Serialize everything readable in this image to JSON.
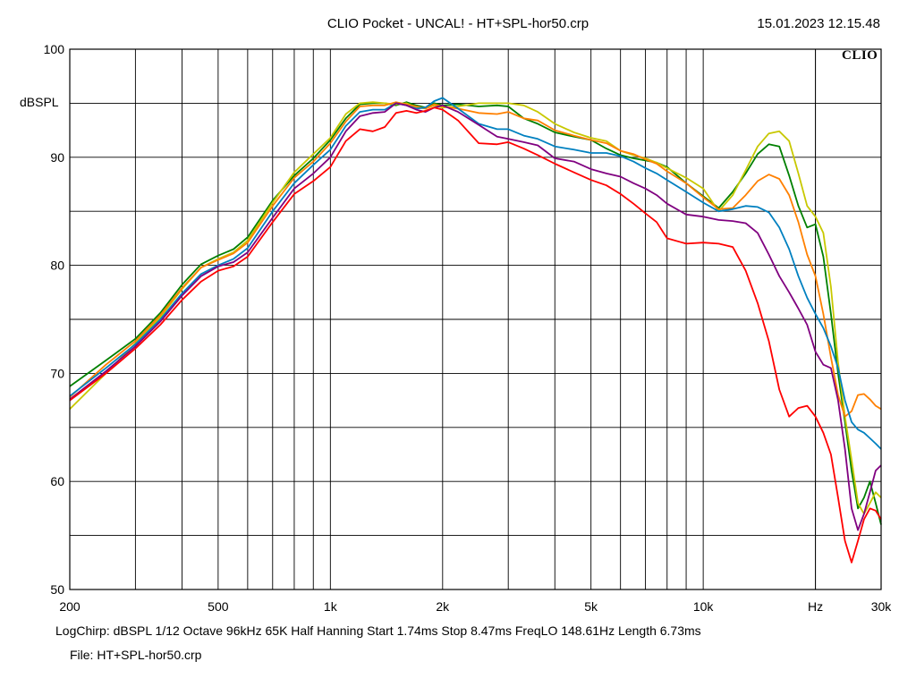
{
  "header": {
    "title": "CLIO Pocket - UNCAL! - HT+SPL-hor50.crp",
    "timestamp": "15.01.2023 12.15.48",
    "brand": "CLIO"
  },
  "footer": {
    "info": "LogChirp:  dBSPL   1/12 Octave   96kHz   65K   Half Hanning   Start 1.74ms    Stop 8.47ms    FreqLO 148.61Hz    Length 6.73ms",
    "file": "File: HT+SPL-hor50.crp"
  },
  "chart_data": {
    "type": "line",
    "xscale": "log",
    "xlim": [
      200,
      30000
    ],
    "ylim": [
      50,
      100
    ],
    "ylabel": "dBSPL",
    "xlabel": "Hz",
    "grid": true,
    "x_ticks": [
      {
        "value": 200,
        "label": "200"
      },
      {
        "value": 500,
        "label": "500"
      },
      {
        "value": 1000,
        "label": "1k"
      },
      {
        "value": 2000,
        "label": "2k"
      },
      {
        "value": 5000,
        "label": "5k"
      },
      {
        "value": 10000,
        "label": "10k"
      },
      {
        "value": 30000,
        "label": "30k"
      }
    ],
    "y_ticks": [
      {
        "value": 100,
        "label": "100"
      },
      {
        "value": 90,
        "label": "90"
      },
      {
        "value": 80,
        "label": "80"
      },
      {
        "value": 70,
        "label": "70"
      },
      {
        "value": 60,
        "label": "60"
      },
      {
        "value": 50,
        "label": "50"
      }
    ],
    "series": [
      {
        "color": "#008000",
        "x": [
          200,
          250,
          300,
          350,
          400,
          450,
          500,
          550,
          600,
          700,
          800,
          900,
          1000,
          1100,
          1200,
          1300,
          1400,
          1500,
          1600,
          1700,
          1800,
          1900,
          2000,
          2200,
          2500,
          2800,
          3000,
          3300,
          3600,
          4000,
          4500,
          5000,
          5500,
          6000,
          6500,
          7000,
          7500,
          8000,
          9000,
          10000,
          11000,
          12000,
          13000,
          14000,
          15000,
          16000,
          17000,
          18000,
          19000,
          20000,
          21000,
          22000,
          23000,
          24000,
          25000,
          26000,
          27000,
          28000,
          29000,
          30000
        ],
        "y": [
          68.8,
          71.2,
          73.2,
          75.6,
          78.2,
          80.1,
          80.9,
          81.5,
          82.6,
          86.0,
          88.3,
          89.9,
          91.6,
          93.6,
          94.9,
          95.0,
          95.0,
          94.8,
          95.1,
          94.8,
          94.6,
          95.0,
          94.8,
          94.9,
          94.7,
          94.8,
          94.7,
          93.6,
          93.1,
          92.3,
          91.9,
          91.6,
          90.8,
          90.2,
          89.9,
          89.7,
          89.5,
          89.1,
          87.6,
          86.4,
          85.3,
          86.8,
          88.5,
          90.3,
          91.2,
          91.0,
          88.3,
          85.5,
          83.5,
          83.8,
          80.8,
          75.5,
          70.0,
          65.5,
          61.0,
          57.5,
          58.5,
          60.0,
          58.0,
          56.0
        ]
      },
      {
        "color": "#c8c800",
        "x": [
          200,
          250,
          300,
          350,
          400,
          450,
          500,
          550,
          600,
          700,
          800,
          900,
          1000,
          1100,
          1200,
          1300,
          1400,
          1500,
          1600,
          1700,
          1800,
          1900,
          2000,
          2200,
          2500,
          2800,
          3000,
          3300,
          3600,
          4000,
          4500,
          5000,
          5500,
          6000,
          6500,
          7000,
          7500,
          8000,
          9000,
          10000,
          11000,
          12000,
          13000,
          14000,
          15000,
          16000,
          17000,
          18000,
          19000,
          20000,
          21000,
          22000,
          23000,
          24000,
          25000,
          26000,
          27000,
          28000,
          29000,
          30000
        ],
        "y": [
          66.7,
          70.0,
          72.8,
          75.2,
          77.8,
          79.8,
          80.6,
          81.2,
          82.3,
          85.8,
          88.6,
          90.3,
          91.8,
          94.0,
          95.0,
          95.1,
          95.0,
          94.9,
          95.0,
          94.6,
          94.5,
          94.8,
          94.6,
          94.7,
          95.0,
          95.0,
          95.0,
          94.8,
          94.2,
          93.1,
          92.3,
          91.8,
          91.5,
          90.6,
          90.2,
          89.9,
          89.5,
          89.0,
          88.1,
          87.1,
          85.0,
          86.5,
          88.8,
          91.0,
          92.2,
          92.4,
          91.5,
          88.5,
          85.5,
          84.5,
          83.0,
          78.0,
          71.0,
          66.0,
          62.0,
          58.0,
          57.0,
          58.0,
          59.0,
          58.5
        ]
      },
      {
        "color": "#ff8000",
        "x": [
          200,
          250,
          300,
          350,
          400,
          450,
          500,
          550,
          600,
          700,
          800,
          900,
          1000,
          1100,
          1200,
          1300,
          1400,
          1500,
          1600,
          1700,
          1800,
          1900,
          2000,
          2200,
          2500,
          2800,
          3000,
          3300,
          3600,
          4000,
          4500,
          5000,
          5500,
          6000,
          6500,
          7000,
          7500,
          8000,
          9000,
          10000,
          11000,
          12000,
          13000,
          14000,
          15000,
          16000,
          17000,
          18000,
          19000,
          20000,
          21000,
          22000,
          23000,
          24000,
          25000,
          26000,
          27000,
          28000,
          29000,
          30000
        ],
        "y": [
          67.8,
          70.8,
          73.0,
          75.4,
          77.9,
          79.8,
          80.5,
          81.1,
          82.1,
          85.5,
          88.1,
          89.6,
          91.3,
          93.3,
          94.7,
          94.8,
          94.8,
          95.1,
          94.9,
          94.7,
          94.5,
          94.9,
          94.7,
          94.5,
          94.1,
          94.0,
          94.2,
          93.6,
          93.4,
          92.5,
          92.0,
          91.6,
          91.3,
          90.6,
          90.3,
          89.8,
          89.4,
          88.7,
          87.6,
          86.3,
          85.2,
          85.3,
          86.5,
          87.8,
          88.4,
          88.0,
          86.5,
          84.0,
          81.0,
          79.0,
          75.5,
          71.5,
          68.0,
          66.0,
          66.5,
          68.0,
          68.1,
          67.6,
          67.0,
          66.7
        ]
      },
      {
        "color": "#0080c0",
        "x": [
          200,
          250,
          300,
          350,
          400,
          450,
          500,
          550,
          600,
          700,
          800,
          900,
          1000,
          1100,
          1200,
          1300,
          1400,
          1500,
          1600,
          1700,
          1800,
          1900,
          2000,
          2200,
          2500,
          2800,
          3000,
          3300,
          3600,
          4000,
          4500,
          5000,
          5500,
          6000,
          6500,
          7000,
          7500,
          8000,
          9000,
          10000,
          11000,
          12000,
          13000,
          14000,
          15000,
          16000,
          17000,
          18000,
          19000,
          20000,
          21000,
          22000,
          23000,
          24000,
          25000,
          26000,
          27000,
          28000,
          29000,
          30000
        ],
        "y": [
          67.9,
          70.5,
          72.7,
          75.0,
          77.4,
          79.2,
          80.0,
          80.6,
          81.6,
          85.0,
          87.6,
          89.3,
          90.7,
          92.9,
          94.2,
          94.4,
          94.4,
          95.0,
          94.8,
          94.5,
          94.6,
          95.2,
          95.5,
          94.5,
          93.1,
          92.6,
          92.6,
          92.0,
          91.7,
          91.0,
          90.7,
          90.4,
          90.4,
          90.1,
          89.6,
          89.0,
          88.5,
          87.9,
          86.8,
          85.8,
          85.0,
          85.2,
          85.5,
          85.4,
          84.9,
          83.5,
          81.5,
          79.0,
          77.0,
          75.5,
          74.2,
          72.5,
          70.5,
          67.5,
          65.5,
          64.8,
          64.5,
          64.0,
          63.5,
          63.0
        ]
      },
      {
        "color": "#800080",
        "x": [
          200,
          250,
          300,
          350,
          400,
          450,
          500,
          550,
          600,
          700,
          800,
          900,
          1000,
          1100,
          1200,
          1300,
          1400,
          1500,
          1600,
          1700,
          1800,
          1900,
          2000,
          2200,
          2500,
          2800,
          3000,
          3300,
          3600,
          4000,
          4500,
          5000,
          5500,
          6000,
          6500,
          7000,
          7500,
          8000,
          9000,
          10000,
          11000,
          12000,
          13000,
          14000,
          15000,
          16000,
          17000,
          18000,
          19000,
          20000,
          21000,
          22000,
          23000,
          24000,
          25000,
          26000,
          27000,
          28000,
          29000,
          30000
        ],
        "y": [
          67.6,
          70.2,
          72.5,
          74.8,
          77.2,
          79.0,
          79.9,
          80.3,
          81.2,
          84.4,
          87.1,
          88.5,
          90.0,
          92.4,
          93.8,
          94.1,
          94.2,
          95.0,
          94.8,
          94.4,
          94.2,
          94.6,
          94.8,
          94.2,
          93.0,
          91.9,
          91.7,
          91.4,
          91.1,
          89.9,
          89.6,
          88.9,
          88.5,
          88.2,
          87.6,
          87.1,
          86.5,
          85.7,
          84.7,
          84.5,
          84.2,
          84.1,
          83.9,
          83.0,
          81.0,
          79.0,
          77.5,
          76.0,
          74.5,
          72.0,
          70.8,
          70.5,
          67.5,
          63.0,
          57.5,
          55.5,
          57.0,
          59.0,
          61.0,
          61.5
        ]
      },
      {
        "color": "#ff0000",
        "x": [
          200,
          250,
          300,
          350,
          400,
          450,
          500,
          550,
          600,
          700,
          800,
          900,
          1000,
          1100,
          1200,
          1300,
          1400,
          1500,
          1600,
          1700,
          1800,
          1900,
          2000,
          2200,
          2500,
          2800,
          3000,
          3300,
          3600,
          4000,
          4500,
          5000,
          5500,
          6000,
          6500,
          7000,
          7500,
          8000,
          9000,
          10000,
          11000,
          12000,
          13000,
          14000,
          15000,
          16000,
          17000,
          18000,
          19000,
          20000,
          21000,
          22000,
          23000,
          24000,
          25000,
          26000,
          27000,
          28000,
          29000,
          30000
        ],
        "y": [
          67.5,
          70.0,
          72.3,
          74.5,
          76.8,
          78.5,
          79.5,
          79.9,
          80.8,
          84.0,
          86.6,
          87.8,
          89.1,
          91.5,
          92.6,
          92.4,
          92.8,
          94.1,
          94.3,
          94.1,
          94.3,
          94.6,
          94.4,
          93.4,
          91.3,
          91.2,
          91.4,
          90.8,
          90.2,
          89.4,
          88.6,
          87.9,
          87.4,
          86.6,
          85.7,
          84.8,
          84.0,
          82.5,
          82.0,
          82.1,
          82.0,
          81.7,
          79.5,
          76.5,
          73.0,
          68.5,
          66.0,
          66.8,
          67.0,
          66.0,
          64.5,
          62.5,
          58.5,
          54.5,
          52.5,
          54.5,
          56.5,
          57.5,
          57.3,
          56.5
        ]
      }
    ]
  }
}
